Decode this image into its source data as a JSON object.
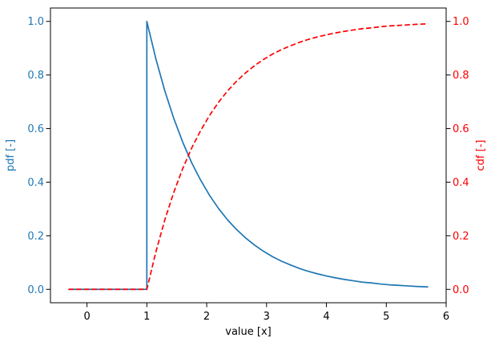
{
  "chart_data": {
    "type": "line",
    "title": "",
    "xlabel": "value [x]",
    "ylabel_left": "pdf [-]",
    "ylabel_right": "cdf [-]",
    "xlim": [
      -0.61,
      6.0
    ],
    "ylim_left": [
      -0.05,
      1.05
    ],
    "ylim_right": [
      -0.05,
      1.05
    ],
    "grid": false,
    "legend": null,
    "xticks": {
      "values": [
        0,
        1,
        2,
        3,
        4,
        5,
        6
      ],
      "labels": [
        "0",
        "1",
        "2",
        "3",
        "4",
        "5",
        "6"
      ]
    },
    "yticks_left": {
      "values": [
        0.0,
        0.2,
        0.4,
        0.6,
        0.8,
        1.0
      ],
      "labels": [
        "0.0",
        "0.2",
        "0.4",
        "0.6",
        "0.8",
        "1.0"
      ]
    },
    "yticks_right": {
      "values": [
        0.0,
        0.2,
        0.4,
        0.6,
        0.8,
        1.0
      ],
      "labels": [
        "0.0",
        "0.2",
        "0.4",
        "0.6",
        "0.8",
        "1.0"
      ]
    },
    "colors": {
      "pdf": "#1f77b4",
      "cdf": "#ff0000",
      "axis": "#000000"
    },
    "series": [
      {
        "name": "pdf",
        "axis": "left",
        "color": "#1f77b4",
        "linestyle": "solid",
        "linewidth": 1.7,
        "x": [
          -0.31,
          1,
          1,
          1.15,
          1.3,
          1.45,
          1.6,
          1.75,
          1.9,
          2.05,
          2.2,
          2.35,
          2.5,
          2.65,
          2.8,
          2.95,
          3.1,
          3.25,
          3.4,
          3.55,
          3.7,
          3.85,
          4,
          4.15,
          4.3,
          4.45,
          4.6,
          4.75,
          4.9,
          5.05,
          5.2,
          5.35,
          5.5,
          5.7
        ],
        "y": [
          0,
          0,
          1,
          0.861,
          0.741,
          0.638,
          0.549,
          0.472,
          0.407,
          0.35,
          0.301,
          0.259,
          0.223,
          0.192,
          0.165,
          0.142,
          0.122,
          0.105,
          0.091,
          0.078,
          0.067,
          0.058,
          0.05,
          0.043,
          0.037,
          0.032,
          0.027,
          0.024,
          0.02,
          0.017,
          0.015,
          0.013,
          0.011,
          0.009
        ]
      },
      {
        "name": "cdf",
        "axis": "right",
        "color": "#ff0000",
        "linestyle": "dashed",
        "linewidth": 1.7,
        "x": [
          -0.31,
          1,
          1.15,
          1.3,
          1.45,
          1.6,
          1.75,
          1.9,
          2.05,
          2.2,
          2.35,
          2.5,
          2.65,
          2.8,
          2.95,
          3.1,
          3.25,
          3.4,
          3.55,
          3.7,
          3.85,
          4,
          4.15,
          4.3,
          4.45,
          4.6,
          4.75,
          4.9,
          5.05,
          5.2,
          5.35,
          5.5,
          5.7
        ],
        "y": [
          0,
          0,
          0.139,
          0.259,
          0.362,
          0.451,
          0.528,
          0.593,
          0.65,
          0.699,
          0.741,
          0.777,
          0.808,
          0.835,
          0.858,
          0.878,
          0.895,
          0.909,
          0.922,
          0.933,
          0.942,
          0.95,
          0.957,
          0.963,
          0.968,
          0.973,
          0.976,
          0.98,
          0.983,
          0.985,
          0.987,
          0.989,
          0.991
        ]
      }
    ]
  }
}
